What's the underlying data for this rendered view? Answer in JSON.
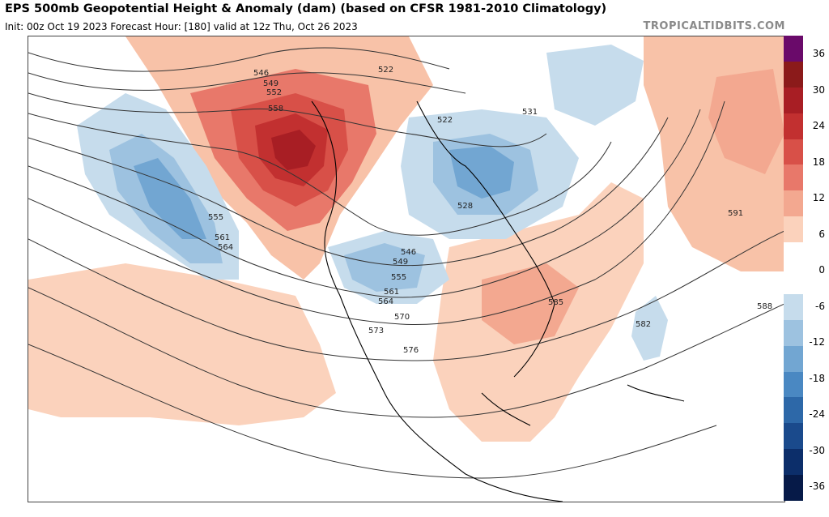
{
  "header": {
    "title": "EPS 500mb Geopotential Height & Anomaly (dam) (based on CFSR 1981-2010 Climatology)",
    "subtitle": "Init: 00z Oct 19 2023   Forecast Hour: [180]   valid at 12z Thu, Oct 26 2023",
    "brand": "TROPICALTIDBITS.COM"
  },
  "colorbar": {
    "ticks": [
      "36",
      "30",
      "24",
      "18",
      "12",
      "6",
      "0",
      "-6",
      "-12",
      "-18",
      "-24",
      "-30",
      "-36"
    ],
    "colors": [
      "#6a0a6a",
      "#8b1a1a",
      "#a81e24",
      "#c23030",
      "#d85048",
      "#e8786a",
      "#f3a890",
      "#fbd2bc",
      "#ffffff",
      "#ffffff",
      "#c6dcec",
      "#9dc2e0",
      "#72a6d2",
      "#4a88c2",
      "#2d68a8",
      "#1a4a8c",
      "#0c2e6a",
      "#061a48"
    ]
  },
  "contour_labels": [
    {
      "text": "546"
    },
    {
      "text": "549"
    },
    {
      "text": "552"
    },
    {
      "text": "558"
    },
    {
      "text": "522"
    },
    {
      "text": "522"
    },
    {
      "text": "531"
    },
    {
      "text": "528"
    },
    {
      "text": "555"
    },
    {
      "text": "561"
    },
    {
      "text": "564"
    },
    {
      "text": "546"
    },
    {
      "text": "549"
    },
    {
      "text": "555"
    },
    {
      "text": "561"
    },
    {
      "text": "564"
    },
    {
      "text": "570"
    },
    {
      "text": "573"
    },
    {
      "text": "576"
    },
    {
      "text": "585"
    },
    {
      "text": "582"
    },
    {
      "text": "588"
    },
    {
      "text": "591"
    }
  ]
}
